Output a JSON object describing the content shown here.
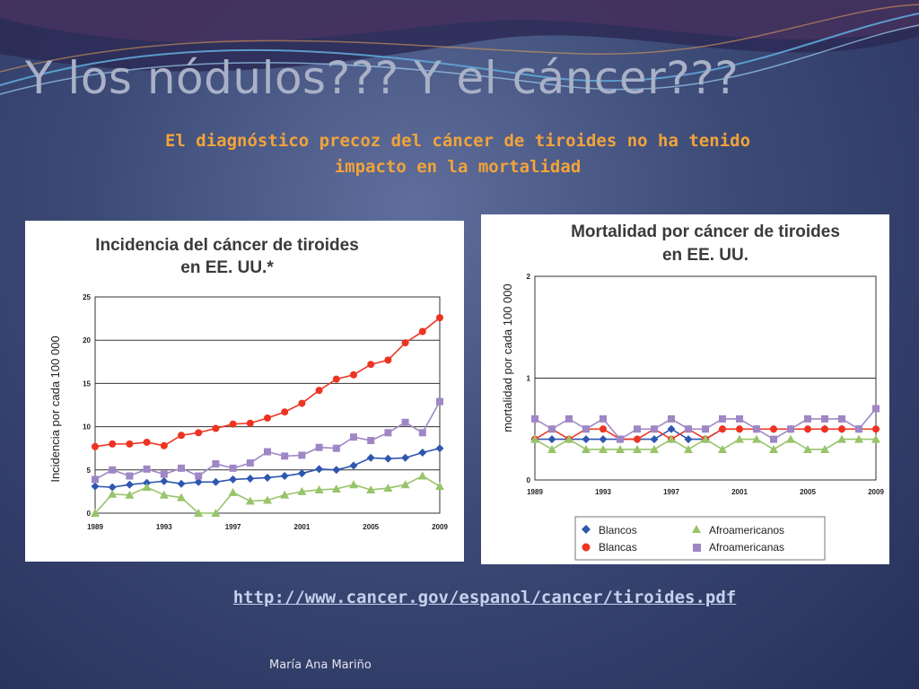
{
  "slide": {
    "title": "Y los nódulos??? Y el cáncer???",
    "subtitle": "El diagnóstico precoz del cáncer de tiroides no ha tenido impacto en la mortalidad",
    "link": "http://www.cancer.gov/espanol/cancer/tiroides.pdf",
    "footer": "María Ana Mariño"
  },
  "colors": {
    "background": "#3c4a76",
    "title": "#a9b1c7",
    "subtitle": "#f2a33a",
    "link": "#c7d0ec",
    "blancos": "#2f56b0",
    "blancas": "#ee3322",
    "afroamericanos": "#98c46a",
    "afroamericanas": "#9e87c4"
  },
  "chart_data": [
    {
      "type": "line",
      "title_line1": "Incidencia del cáncer de tiroides",
      "title_line2": "en EE. UU.*",
      "ylabel": "Incidencia por cada 100 000",
      "xlabel": "",
      "x": [
        1989,
        1990,
        1991,
        1992,
        1993,
        1994,
        1995,
        1996,
        1997,
        1998,
        1999,
        2000,
        2001,
        2002,
        2003,
        2004,
        2005,
        2006,
        2007,
        2008,
        2009
      ],
      "xticks": [
        "1989",
        "1993",
        "1997",
        "2001",
        "2005",
        "2009"
      ],
      "yticks": [
        "0",
        "5",
        "10",
        "15",
        "20",
        "25"
      ],
      "ylim": [
        0,
        25
      ],
      "grid": true,
      "series": [
        {
          "values": [
            7.7,
            8.0,
            8.0,
            8.2,
            7.8,
            9.0,
            9.3,
            9.8,
            10.3,
            10.4,
            11.0,
            11.7,
            12.7,
            14.2,
            15.5,
            16.0,
            17.2,
            17.7,
            19.7,
            21.0,
            22.6
          ]
        },
        {
          "values": [
            3.1,
            3.0,
            3.3,
            3.5,
            3.7,
            3.4,
            3.6,
            3.6,
            3.9,
            4.0,
            4.1,
            4.3,
            4.6,
            5.1,
            5.0,
            5.5,
            6.4,
            6.3,
            6.4,
            7.0,
            7.5
          ]
        },
        {
          "values": [
            3.9,
            5.0,
            4.3,
            5.1,
            4.5,
            5.2,
            4.3,
            5.7,
            5.2,
            5.8,
            7.1,
            6.6,
            6.7,
            7.6,
            7.5,
            8.8,
            8.4,
            9.3,
            10.5,
            9.3,
            12.9
          ]
        },
        {
          "values": [
            0,
            2.2,
            2.1,
            3.0,
            2.1,
            1.8,
            0,
            0,
            2.4,
            1.4,
            1.5,
            2.1,
            2.5,
            2.7,
            2.8,
            3.3,
            2.7,
            2.9,
            3.3,
            4.3,
            3.1
          ]
        }
      ]
    },
    {
      "type": "line",
      "title_line1": "Mortalidad por cáncer de tiroides",
      "title_line2": "en EE. UU.",
      "ylabel": "mortalidad por cada 100 000",
      "xlabel": "",
      "x": [
        1989,
        1990,
        1991,
        1992,
        1993,
        1994,
        1995,
        1996,
        1997,
        1998,
        1999,
        2000,
        2001,
        2002,
        2003,
        2004,
        2005,
        2006,
        2007,
        2008,
        2009
      ],
      "xticks": [
        "1989",
        "1993",
        "1997",
        "2001",
        "2005",
        "2009"
      ],
      "yticks": [
        "0",
        "1",
        "2"
      ],
      "ylim": [
        0,
        2
      ],
      "grid": true,
      "legend_position": "bottom",
      "series": [
        {
          "name": "Blancos",
          "values": [
            0.4,
            0.4,
            0.4,
            0.4,
            0.4,
            0.4,
            0.4,
            0.4,
            0.5,
            0.4,
            0.4,
            0.5,
            0.5,
            0.5,
            0.5,
            0.5,
            0.5,
            0.5,
            0.5,
            0.5,
            0.5
          ]
        },
        {
          "name": "Blancas",
          "values": [
            0.4,
            0.5,
            0.4,
            0.5,
            0.5,
            0.4,
            0.4,
            0.5,
            0.4,
            0.5,
            0.4,
            0.5,
            0.5,
            0.5,
            0.5,
            0.5,
            0.5,
            0.5,
            0.5,
            0.5,
            0.5
          ]
        },
        {
          "name": "Afroamericanos",
          "values": [
            0.4,
            0.3,
            0.4,
            0.3,
            0.3,
            0.3,
            0.3,
            0.3,
            0.4,
            0.3,
            0.4,
            0.3,
            0.4,
            0.4,
            0.3,
            0.4,
            0.3,
            0.3,
            0.4,
            0.4,
            0.4
          ]
        },
        {
          "name": "Afroamericanas",
          "values": [
            0.6,
            0.5,
            0.6,
            0.5,
            0.6,
            0.4,
            0.5,
            0.5,
            0.6,
            0.5,
            0.5,
            0.6,
            0.6,
            0.5,
            0.4,
            0.5,
            0.6,
            0.6,
            0.6,
            0.5,
            0.7
          ]
        }
      ]
    }
  ]
}
